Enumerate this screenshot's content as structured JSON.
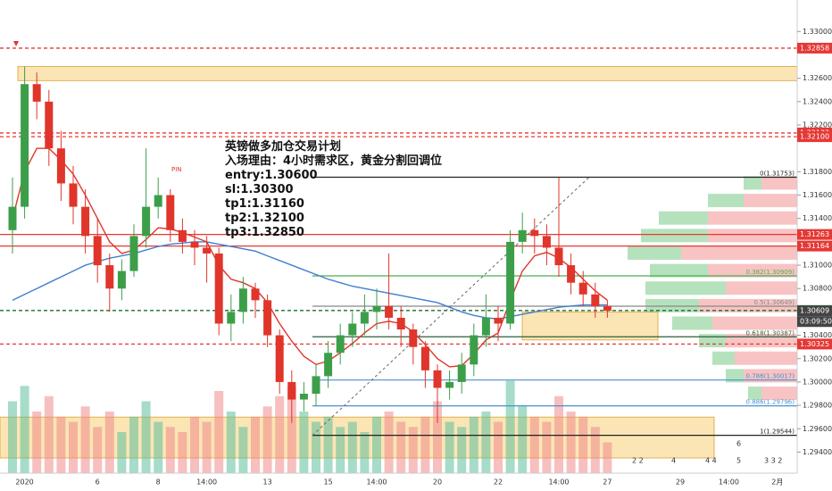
{
  "chart_data": {
    "type": "candlestick",
    "annotation": [
      "英镑做多加仓交易计划",
      "入场理由：4小时需求区，黄金分割回调位",
      "entry:1.30600",
      "sl:1.30300",
      "tp1:1.31160",
      "tp2:1.32100",
      "tp3:1.32850"
    ],
    "marker_label": "PIN",
    "countdown": "03:09:50",
    "event_labels": [
      "2 2",
      "4",
      "4 4",
      "6",
      "5",
      "3 3 2"
    ],
    "ylim": [
      1.2922,
      1.3327
    ],
    "yticks": [
      {
        "value": 1.294,
        "label": "1.29400"
      },
      {
        "value": 1.296,
        "label": "1.29600"
      },
      {
        "value": 1.298,
        "label": "1.29800"
      },
      {
        "value": 1.3,
        "label": "1.30000"
      },
      {
        "value": 1.302,
        "label": "1.30200"
      },
      {
        "value": 1.304,
        "label": "1.30400"
      },
      {
        "value": 1.308,
        "label": "1.30800"
      },
      {
        "value": 1.31,
        "label": "1.31000"
      },
      {
        "value": 1.314,
        "label": "1.31400"
      },
      {
        "value": 1.316,
        "label": "1.31600"
      },
      {
        "value": 1.318,
        "label": "1.31800"
      },
      {
        "value": 1.322,
        "label": "1.32200"
      },
      {
        "value": 1.324,
        "label": "1.32400"
      },
      {
        "value": 1.326,
        "label": "1.32600"
      },
      {
        "value": 1.33,
        "label": "1.33000"
      }
    ],
    "categories": [
      null,
      "2020",
      null,
      null,
      null,
      null,
      null,
      "6",
      null,
      null,
      null,
      null,
      "8",
      null,
      null,
      null,
      "14:00",
      null,
      null,
      null,
      null,
      "13",
      null,
      null,
      null,
      null,
      "15",
      null,
      null,
      null,
      "14:00",
      null,
      null,
      null,
      null,
      "20",
      null,
      null,
      null,
      null,
      "22",
      null,
      null,
      null,
      null,
      "14:00",
      null,
      null,
      null,
      "27",
      null,
      null,
      null,
      null,
      null,
      "29",
      null,
      null,
      null,
      "14:00",
      null,
      null,
      null,
      "2月",
      null
    ],
    "up_color": "#3d9e4a",
    "down_color": "#e0352b",
    "open": [
      1.313,
      1.315,
      1.3255,
      1.324,
      1.32,
      1.317,
      1.315,
      1.3125,
      1.31,
      1.308,
      1.3095,
      1.3125,
      1.315,
      1.316,
      1.313,
      1.312,
      1.3115,
      1.311,
      1.305,
      1.306,
      1.308,
      1.307,
      1.304,
      1.3,
      1.2985,
      1.299,
      1.3005,
      1.3025,
      1.304,
      1.305,
      1.306,
      1.3065,
      1.3055,
      1.3045,
      1.303,
      1.301,
      1.2995,
      1.3,
      1.3015,
      1.304,
      1.3055,
      1.305,
      1.312,
      1.313,
      1.3125,
      1.3115,
      1.31,
      1.3085,
      1.3075,
      1.3065,
      null,
      null,
      null,
      null,
      null,
      null,
      null,
      null,
      null,
      null,
      null,
      null,
      null,
      null,
      null
    ],
    "high": [
      1.3175,
      1.327,
      1.3265,
      1.325,
      1.3215,
      1.3185,
      1.3165,
      1.314,
      1.311,
      1.3105,
      1.3135,
      1.32,
      1.3175,
      1.3165,
      1.314,
      1.313,
      1.3125,
      1.3115,
      1.3075,
      1.309,
      1.3085,
      1.3075,
      1.3045,
      1.301,
      1.3,
      1.3015,
      1.3035,
      1.305,
      1.306,
      1.3075,
      1.308,
      1.311,
      1.3065,
      1.305,
      1.3035,
      1.3015,
      1.301,
      1.3025,
      1.305,
      1.3075,
      1.3065,
      1.313,
      1.3145,
      1.314,
      1.3135,
      1.3175,
      1.311,
      1.3095,
      1.3085,
      1.307,
      null,
      null,
      null,
      null,
      null,
      null,
      null,
      null,
      null,
      null,
      null,
      null,
      null,
      null,
      null
    ],
    "low": [
      1.311,
      1.314,
      1.3225,
      1.3185,
      1.3155,
      1.3135,
      1.311,
      1.3085,
      1.306,
      1.307,
      1.309,
      1.3115,
      1.314,
      1.312,
      1.311,
      1.31,
      1.3085,
      1.304,
      1.3035,
      1.305,
      1.3055,
      1.303,
      1.299,
      1.2965,
      1.2975,
      1.298,
      1.2995,
      1.3015,
      1.303,
      1.304,
      1.3045,
      1.3045,
      1.303,
      1.3015,
      1.2995,
      1.2965,
      1.2985,
      1.299,
      1.3005,
      1.303,
      1.3035,
      1.3045,
      1.311,
      1.311,
      1.31,
      1.309,
      1.3075,
      1.3065,
      1.3055,
      1.3055,
      null,
      null,
      null,
      null,
      null,
      null,
      null,
      null,
      null,
      null,
      null,
      null,
      null,
      null,
      null
    ],
    "close": [
      1.315,
      1.3255,
      1.324,
      1.32,
      1.317,
      1.315,
      1.3125,
      1.31,
      1.308,
      1.3095,
      1.3125,
      1.315,
      1.316,
      1.313,
      1.312,
      1.3115,
      1.311,
      1.305,
      1.306,
      1.308,
      1.307,
      1.304,
      1.3,
      1.2985,
      1.299,
      1.3005,
      1.3025,
      1.304,
      1.305,
      1.306,
      1.3065,
      1.3055,
      1.3045,
      1.303,
      1.301,
      1.2995,
      1.3,
      1.3015,
      1.304,
      1.3055,
      1.305,
      1.312,
      1.313,
      1.3125,
      1.3115,
      1.31,
      1.3085,
      1.3075,
      1.3065,
      1.3061,
      null,
      null,
      null,
      null,
      null,
      null,
      null,
      null,
      null,
      null,
      null,
      null,
      null,
      null,
      null
    ],
    "volume": [
      70,
      85,
      60,
      75,
      55,
      50,
      65,
      45,
      60,
      40,
      55,
      70,
      50,
      45,
      40,
      55,
      50,
      80,
      60,
      45,
      55,
      65,
      75,
      85,
      60,
      50,
      55,
      45,
      50,
      40,
      55,
      60,
      50,
      45,
      55,
      70,
      50,
      45,
      55,
      60,
      50,
      90,
      65,
      55,
      50,
      75,
      60,
      55,
      45,
      30,
      null,
      null,
      null,
      null,
      null,
      null,
      null,
      null,
      null,
      null,
      null,
      null,
      null,
      null,
      null
    ],
    "ma_fast": {
      "color": "#e0352b",
      "values": [
        1.314,
        1.318,
        1.32,
        1.32,
        1.319,
        1.3178,
        1.316,
        1.314,
        1.312,
        1.311,
        1.3113,
        1.3122,
        1.3132,
        1.3131,
        1.3128,
        1.3124,
        1.312,
        1.31,
        1.3088,
        1.3085,
        1.308,
        1.3068,
        1.305,
        1.3035,
        1.3022,
        1.3015,
        1.3018,
        1.3025,
        1.3033,
        1.3042,
        1.305,
        1.3052,
        1.305,
        1.3043,
        1.3032,
        1.302,
        1.3013,
        1.3014,
        1.3024,
        1.3036,
        1.3042,
        1.307,
        1.3095,
        1.3108,
        1.3111,
        1.3106,
        1.3098,
        1.3088,
        1.3078,
        1.307,
        null,
        null,
        null,
        null,
        null,
        null,
        null,
        null,
        null,
        null,
        null,
        null,
        null,
        null,
        null
      ]
    },
    "ma_slow": {
      "color": "#3f7fd0",
      "values": [
        1.307,
        1.3075,
        1.308,
        1.3085,
        1.309,
        1.3095,
        1.31,
        1.3103,
        1.3106,
        1.3108,
        1.311,
        1.3113,
        1.3116,
        1.3118,
        1.3119,
        1.312,
        1.312,
        1.3118,
        1.3116,
        1.3114,
        1.3112,
        1.3108,
        1.3104,
        1.31,
        1.3096,
        1.3092,
        1.3088,
        1.3085,
        1.3082,
        1.308,
        1.3078,
        1.3076,
        1.3074,
        1.3072,
        1.307,
        1.3068,
        1.3064,
        1.306,
        1.3057,
        1.3055,
        1.3054,
        1.3056,
        1.3058,
        1.306,
        1.3062,
        1.3064,
        1.3065,
        1.3066,
        1.3066,
        1.3066,
        null,
        null,
        null,
        null,
        null,
        null,
        null,
        null,
        null,
        null,
        null,
        null,
        null,
        null,
        null
      ]
    },
    "levels": [
      {
        "value": 1.32858,
        "label": "1.32858",
        "color": "#e53935",
        "style": "dashed"
      },
      {
        "value": 1.32132,
        "label": "1.32132",
        "color": "#e53935",
        "style": "dashed"
      },
      {
        "value": 1.321,
        "label": "1.32100",
        "color": "#e53935",
        "style": "dashed"
      },
      {
        "value": 1.31263,
        "label": "1.31263",
        "color": "#e53935",
        "style": "solid"
      },
      {
        "value": 1.31164,
        "label": "1.31164",
        "color": "#e53935",
        "style": "solid"
      },
      {
        "value": 1.30612,
        "label": "1.30612",
        "color": "#1b6e2a",
        "style": "dashed"
      },
      {
        "value": 1.30609,
        "label": "1.30609",
        "color": "#444444",
        "style": "none"
      },
      {
        "value": 1.30325,
        "label": "1.30325",
        "color": "#e53935",
        "style": "dashed"
      }
    ],
    "fib": [
      {
        "value": 1.31753,
        "label": "0(1.31753)",
        "color": "#222222"
      },
      {
        "value": 1.30909,
        "label": "0.382(1.30909)",
        "color": "#4caf50"
      },
      {
        "value": 1.30649,
        "label": "0.5(1.30649)",
        "color": "#888888"
      },
      {
        "value": 1.30387,
        "label": "0.618(1.30387)",
        "color": "#2e5e3a"
      },
      {
        "value": 1.30017,
        "label": "0.786(1.30017)",
        "color": "#4a8fd0"
      },
      {
        "value": 1.29796,
        "label": "0.886(1.29796)",
        "color": "#4a8fd0"
      },
      {
        "value": 1.29544,
        "label": "1(1.29544)",
        "color": "#222222"
      }
    ],
    "zones": [
      {
        "from": 1.3258,
        "to": 1.327
      },
      {
        "from": 1.3036,
        "to": 1.306
      },
      {
        "from": 1.2935,
        "to": 1.297
      }
    ],
    "profile_prices": [
      1.317,
      1.3155,
      1.314,
      1.3125,
      1.311,
      1.3095,
      1.308,
      1.3065,
      1.305,
      1.3035,
      1.302,
      1.3005,
      1.299
    ],
    "profile_buy": [
      20,
      40,
      55,
      75,
      60,
      65,
      90,
      60,
      45,
      30,
      25,
      20,
      15
    ],
    "profile_sell": [
      40,
      60,
      100,
      100,
      130,
      100,
      80,
      110,
      95,
      80,
      70,
      60,
      40
    ]
  }
}
